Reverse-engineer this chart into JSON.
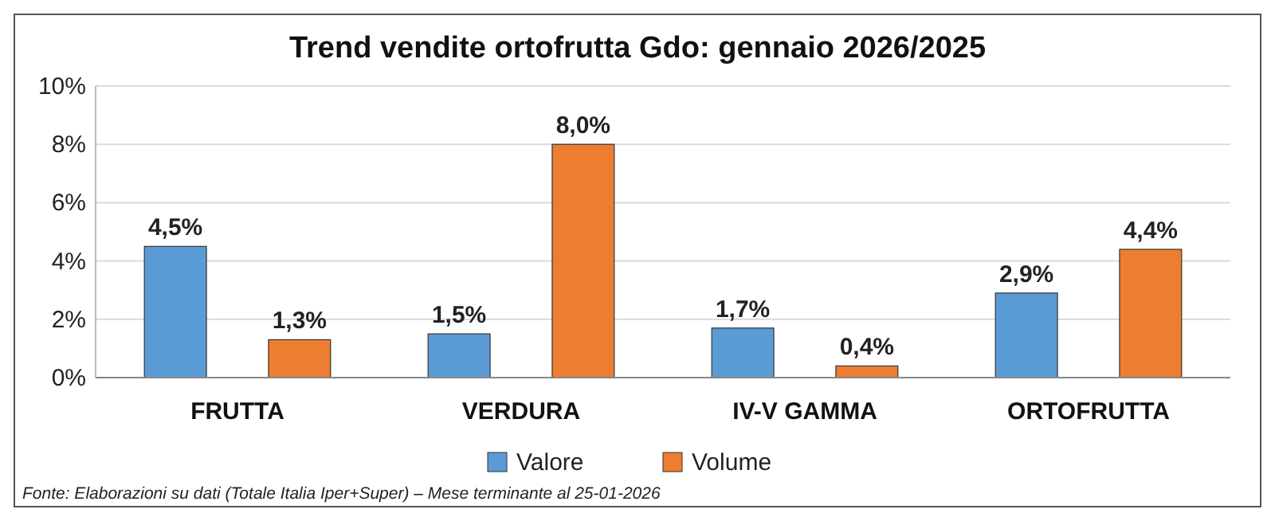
{
  "chart_data": {
    "type": "bar",
    "title": "Trend vendite ortofrutta Gdo: gennaio 2026/2025",
    "categories": [
      "FRUTTA",
      "VERDURA",
      "IV-V GAMMA",
      "ORTOFRUTTA"
    ],
    "series": [
      {
        "name": "Valore",
        "color": "#5b9bd5",
        "values": [
          4.5,
          1.5,
          1.7,
          2.9
        ],
        "value_labels": [
          "4,5%",
          "1,5%",
          "1,7%",
          "2,9%"
        ]
      },
      {
        "name": "Volume",
        "color": "#ed7d31",
        "values": [
          1.3,
          8.0,
          0.4,
          4.4
        ],
        "value_labels": [
          "1,3%",
          "8,0%",
          "0,4%",
          "4,4%"
        ]
      }
    ],
    "ylim": [
      0,
      10
    ],
    "yticks": [
      {
        "value": 0,
        "label": "0%"
      },
      {
        "value": 2,
        "label": "2%"
      },
      {
        "value": 4,
        "label": "4%"
      },
      {
        "value": 6,
        "label": "6%"
      },
      {
        "value": 8,
        "label": "8%"
      },
      {
        "value": 10,
        "label": "10%"
      }
    ],
    "grid": "y",
    "legend": "bottom",
    "annotations": [
      "Fonte: Elaborazioni su dati (Totale Italia Iper+Super) – Mese terminante al 25-01-2026"
    ]
  }
}
